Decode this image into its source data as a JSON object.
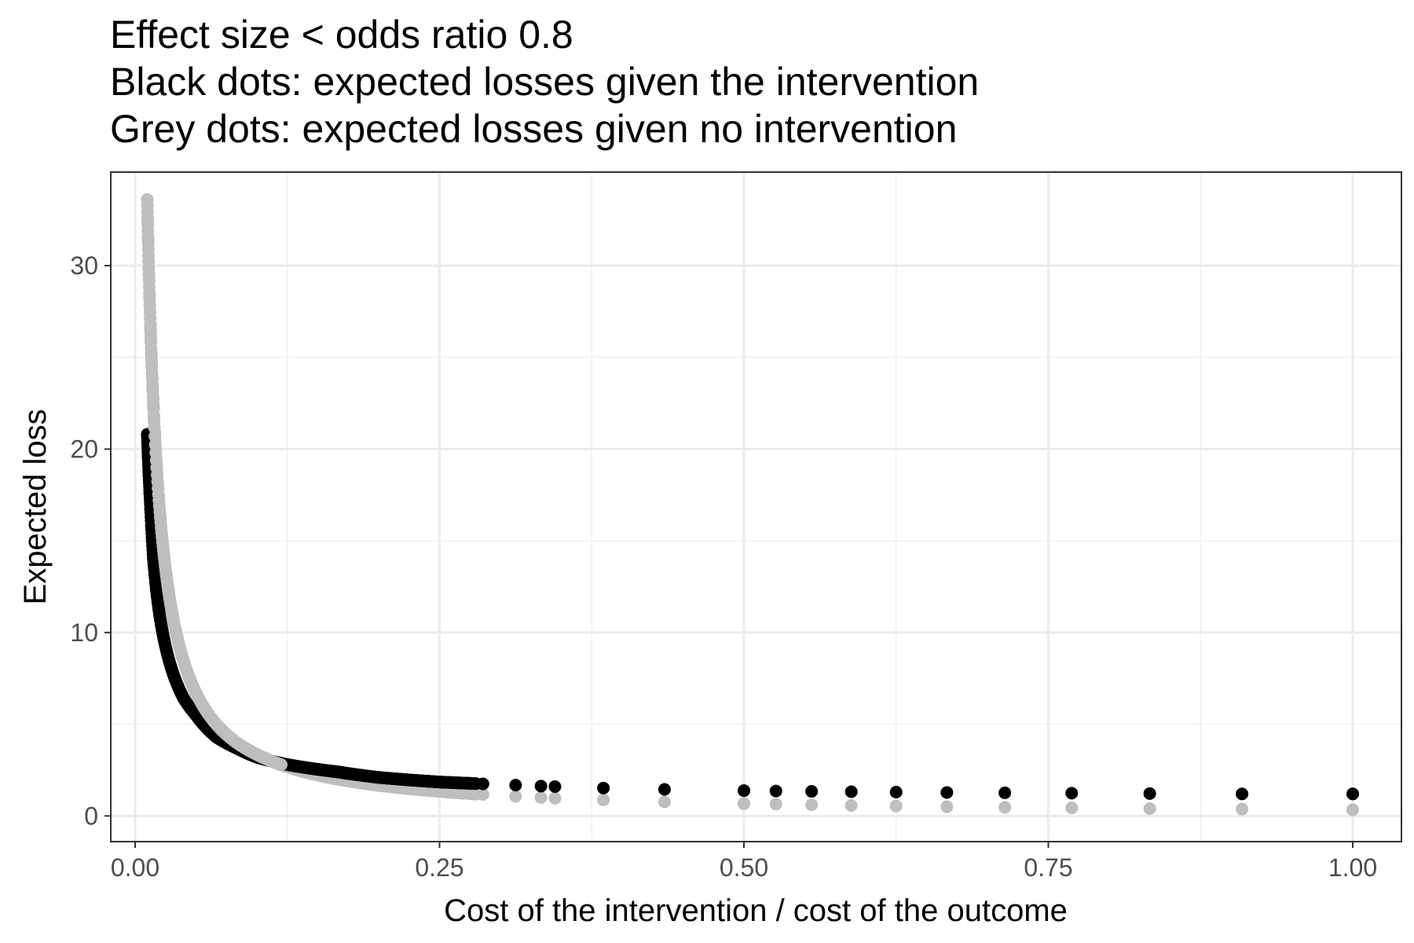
{
  "chart_data": {
    "type": "scatter",
    "title_lines": [
      "Effect size < odds ratio 0.8",
      "Black dots: expected losses given the intervention",
      "Grey dots: expected losses given no intervention"
    ],
    "xlabel": "Cost of the intervention / cost of the outcome",
    "ylabel": "Expected loss",
    "xlim": [
      -0.02,
      1.04
    ],
    "ylim": [
      -1.4,
      35.1
    ],
    "x_ticks": [
      0,
      0.25,
      0.5,
      0.75,
      1.0
    ],
    "x_tick_labels": [
      "0.00",
      "0.25",
      "0.50",
      "0.75",
      "1.00"
    ],
    "y_ticks": [
      0,
      10,
      20,
      30
    ],
    "y_tick_labels": [
      "0",
      "10",
      "20",
      "30"
    ],
    "grid": true,
    "x_formula": "x = 1 / n for n = 1..100",
    "series": [
      {
        "color": "#000000",
        "description": "expected losses given the intervention",
        "x": [
          1.0,
          0.9091,
          0.8333,
          0.7692,
          0.7143,
          0.6667,
          0.625,
          0.5882,
          0.5556,
          0.5263,
          0.5,
          0.4348,
          0.3846,
          0.3448,
          0.3125,
          0.2857,
          0.25,
          0.2,
          0.1667,
          0.125,
          0.1,
          0.0833,
          0.0667,
          0.05,
          0.04,
          0.03,
          0.02,
          0.015,
          0.0125,
          0.01
        ],
        "values": [
          1.2,
          1.2,
          1.22,
          1.24,
          1.26,
          1.28,
          1.3,
          1.32,
          1.34,
          1.36,
          1.38,
          1.45,
          1.52,
          1.6,
          1.68,
          1.75,
          1.85,
          2.1,
          2.4,
          2.8,
          3.2,
          3.7,
          4.3,
          5.5,
          6.4,
          8.0,
          11.0,
          14.0,
          17.0,
          20.8
        ]
      },
      {
        "color": "#bebebe",
        "description": "expected losses given no intervention",
        "x": [
          1.0,
          0.9091,
          0.8333,
          0.7692,
          0.7143,
          0.6667,
          0.625,
          0.5882,
          0.5556,
          0.5263,
          0.5,
          0.4348,
          0.3846,
          0.3448,
          0.3125,
          0.2857,
          0.25,
          0.2,
          0.1667,
          0.125,
          0.1,
          0.0833,
          0.0667,
          0.05,
          0.04,
          0.03,
          0.02,
          0.015,
          0.0125,
          0.01
        ],
        "values": [
          0.34,
          0.37,
          0.4,
          0.44,
          0.47,
          0.5,
          0.54,
          0.57,
          0.61,
          0.64,
          0.67,
          0.77,
          0.87,
          0.97,
          1.07,
          1.17,
          1.34,
          1.67,
          2.0,
          2.68,
          3.35,
          4.0,
          5.0,
          6.7,
          8.4,
          11.2,
          16.8,
          22.4,
          26.8,
          33.6
        ]
      }
    ]
  }
}
